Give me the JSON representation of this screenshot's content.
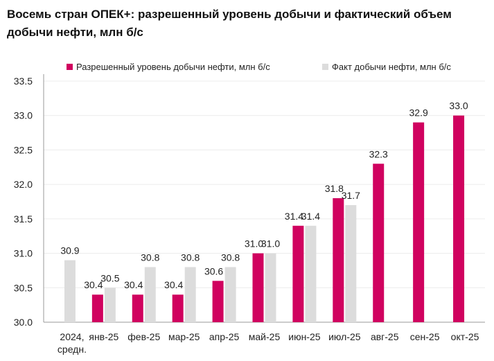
{
  "chart_data": {
    "type": "bar",
    "title": "Восемь стран ОПЕК+: разрешенный уровень добычи и фактический объем добычи нефти, млн б/с",
    "categories": [
      "2024,\nсредн.",
      "янв-25",
      "фев-25",
      "мар-25",
      "апр-25",
      "май-25",
      "июн-25",
      "июл-25",
      "авг-25",
      "сен-25",
      "окт-25"
    ],
    "series": [
      {
        "name": "Разрешенный уровень добычи нефти, млн б/с",
        "color": "#d0025f",
        "values": [
          null,
          30.4,
          30.4,
          30.4,
          30.6,
          31.0,
          31.4,
          31.8,
          32.3,
          32.9,
          33.0
        ]
      },
      {
        "name": "Факт добычи нефти, млн б/с",
        "color": "#dcdcdc",
        "values": [
          30.9,
          30.5,
          30.8,
          30.8,
          30.8,
          31.0,
          31.4,
          31.7,
          null,
          null,
          null
        ]
      }
    ],
    "ylim": [
      30.0,
      33.5
    ],
    "yticks": [
      "30.0",
      "30.5",
      "31.0",
      "31.5",
      "32.0",
      "32.5",
      "33.0",
      "33.5"
    ],
    "xlabel": "",
    "ylabel": "",
    "grid": true,
    "legend": "top"
  }
}
